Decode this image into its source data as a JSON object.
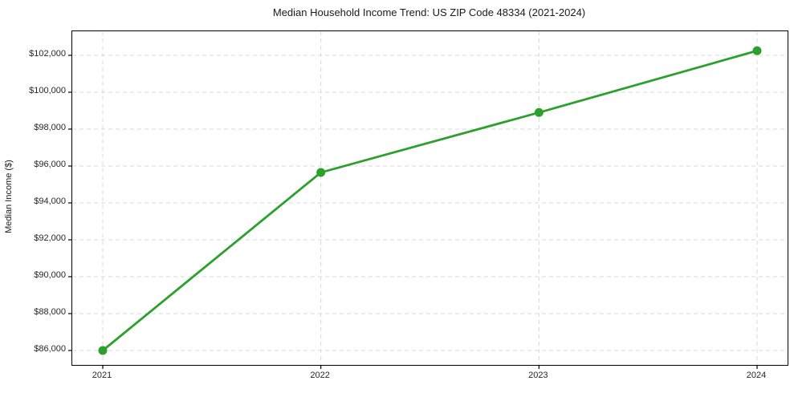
{
  "chart_data": {
    "type": "line",
    "title": "Median Household Income Trend: US ZIP Code 48334 (2021-2024)",
    "xlabel": "",
    "ylabel": "Median Income ($)",
    "x": [
      2021,
      2022,
      2023,
      2024
    ],
    "x_tick_labels": [
      "2021",
      "2022",
      "2023",
      "2024"
    ],
    "series": [
      {
        "name": "Median Household Income",
        "values": [
          86000,
          95650,
          98900,
          102250
        ],
        "color": "#2ca02c",
        "marker": "circle",
        "line_width": 2.8,
        "marker_radius": 5.5
      }
    ],
    "y_ticks": [
      86000,
      88000,
      90000,
      92000,
      94000,
      96000,
      98000,
      100000,
      102000
    ],
    "y_tick_labels": [
      "$86,000",
      "$88,000",
      "$90,000",
      "$92,000",
      "$94,000",
      "$96,000",
      "$98,000",
      "$100,000",
      "$102,000"
    ],
    "ylim": [
      85217,
      103304
    ],
    "grid": true,
    "grid_style": "dashed",
    "legend_position": "none",
    "colors": {
      "line": "#2ca02c",
      "grid": "#d9d9d9",
      "axis_border": "#000000",
      "background": "#ffffff",
      "text": "#262626"
    }
  }
}
